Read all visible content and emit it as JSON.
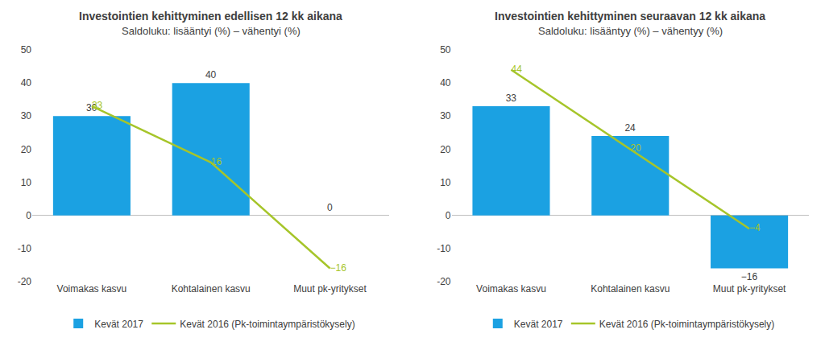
{
  "chart_data": [
    {
      "type": "bar",
      "title": "Investointien kehittyminen edellisen 12 kk aikana",
      "subtitle": "Saldoluku: lisääntyi (%) – vähentyi (%)",
      "categories": [
        "Voimakas kasvu",
        "Kohtalainen kasvu",
        "Muut pk-yritykset"
      ],
      "series": [
        {
          "name": "Kevät 2017",
          "type": "bar",
          "color": "#1ba1e2",
          "values": [
            30,
            40,
            0
          ]
        },
        {
          "name": "Kevät 2016 (Pk-toimintaympäristökysely)",
          "type": "line",
          "color": "#a6c52a",
          "values": [
            33,
            16,
            -16
          ]
        }
      ],
      "ylim": [
        -20,
        50
      ],
      "yticks": [
        -20,
        -10,
        0,
        10,
        20,
        30,
        40,
        50
      ],
      "grid": false,
      "data_labels": true,
      "legend": "bottom"
    },
    {
      "type": "bar",
      "title": "Investointien kehittyminen seuraavan 12 kk aikana",
      "subtitle": "Saldoluku: lisääntyy (%) – vähentyy (%)",
      "categories": [
        "Voimakas kasvu",
        "Kohtalainen kasvu",
        "Muut pk-yritykset"
      ],
      "series": [
        {
          "name": "Kevät 2017",
          "type": "bar",
          "color": "#1ba1e2",
          "values": [
            33,
            24,
            -16
          ]
        },
        {
          "name": "Kevät 2016 (Pk-toimintaympäristökysely)",
          "type": "line",
          "color": "#a6c52a",
          "values": [
            44,
            20,
            -4
          ]
        }
      ],
      "ylim": [
        -20,
        50
      ],
      "yticks": [
        -20,
        -10,
        0,
        10,
        20,
        30,
        40,
        50
      ],
      "grid": false,
      "data_labels": true,
      "legend": "bottom"
    }
  ]
}
